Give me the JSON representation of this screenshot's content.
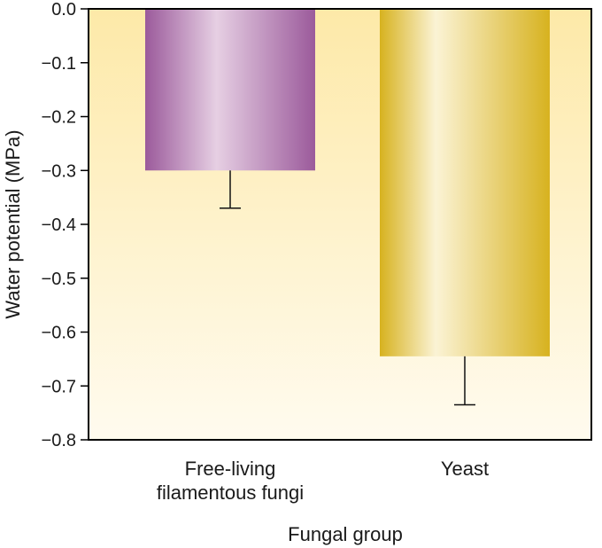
{
  "chart_data": {
    "type": "bar",
    "categories": [
      [
        "Free-living",
        "filamentous fungi"
      ],
      [
        "Yeast"
      ]
    ],
    "values": [
      -0.3,
      -0.645
    ],
    "error": [
      0.07,
      0.09
    ],
    "ylim": [
      -0.8,
      0.0
    ],
    "yticks": [
      0.0,
      -0.1,
      -0.2,
      -0.3,
      -0.4,
      -0.5,
      -0.6,
      -0.7,
      -0.8
    ],
    "ytick_labels": [
      "0.0",
      "−0.1",
      "−0.2",
      "−0.3",
      "−0.4",
      "−0.5",
      "−0.6",
      "−0.7",
      "−0.8"
    ],
    "xlabel": "Fungal group",
    "ylabel": "Water potential (MPa)",
    "grid": false,
    "colors": {
      "bar_1": "#9b5a9b",
      "bar_1_light": "#e6cfe3",
      "bar_2": "#d7b21f",
      "bar_2_light": "#fbf3d5",
      "background_top": "#fde9a8",
      "background_bottom": "#fffbef"
    }
  }
}
